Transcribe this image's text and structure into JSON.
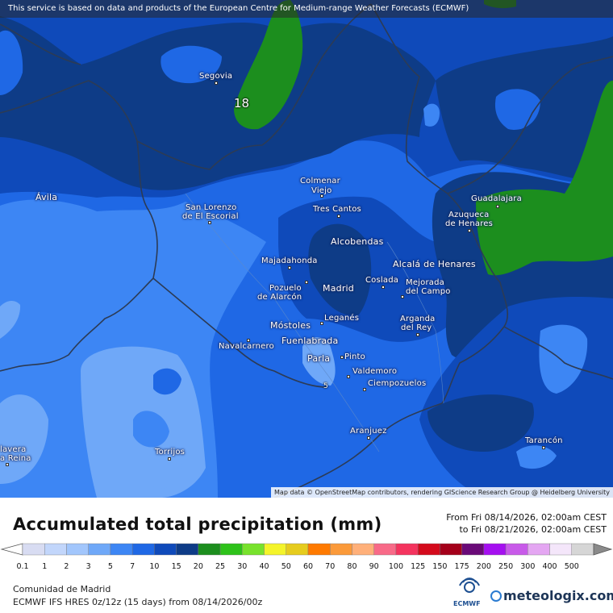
{
  "notice": "This service is based on data and products of the European Centre for Medium-range Weather Forecasts (ECMWF)",
  "attribution": "Map data © OpenStreetMap contributors, rendering GIScience Research Group @ Heidelberg University",
  "title": "Accumulated total precipitation (mm)",
  "period_from": "From Fri 08/14/2026, 02:00am CEST",
  "period_to": "to Fri 08/21/2026, 02:00am CEST",
  "region": "Comunidad de Madrid",
  "model_info": "ECMWF IFS HRES 0z/12z (15 days) from  08/14/2026/00z",
  "brand": "meteologix.com",
  "ecmwf_logo_text": "ECMWF",
  "contour_labels": {
    "c18": "18",
    "c5": "5"
  },
  "cities": {
    "segovia": "Segovia",
    "avila": "Ávila",
    "colmenar1": "Colmenar",
    "colmenar2": "Viejo",
    "sanlorenzo1": "San Lorenzo",
    "sanlorenzo2": "de El Escorial",
    "trescantos": "Tres Cantos",
    "guadalajara": "Guadalajara",
    "azuqueca1": "Azuqueca",
    "azuqueca2": "de Henares",
    "alcobendas": "Alcobendas",
    "majadahonda": "Majadahonda",
    "alcala": "Alcalá de Henares",
    "pozuelo1": "Pozuelo",
    "pozuelo2": "de Alarcón",
    "madrid": "Madrid",
    "coslada": "Coslada",
    "mejorada1": "Mejorada",
    "mejorada2": "del Campo",
    "leganes": "Leganés",
    "mostoles": "Móstoles",
    "arganda1": "Arganda",
    "arganda2": "del Rey",
    "fuenlabrada": "Fuenlabrada",
    "navalcarnero": "Navalcarnero",
    "parla": "Parla",
    "pinto": "Pinto",
    "valdemoro": "Valdemoro",
    "ciempozuelos": "Ciempozuelos",
    "aranjuez": "Aranjuez",
    "tarancon": "Tarancón",
    "torrijos": "Torrijos",
    "talavera1": "lavera",
    "talavera2": "a Reina"
  },
  "legend": {
    "values": [
      "0.1",
      "1",
      "2",
      "3",
      "5",
      "7",
      "10",
      "15",
      "20",
      "25",
      "30",
      "40",
      "50",
      "60",
      "70",
      "80",
      "90",
      "100",
      "125",
      "150",
      "175",
      "200",
      "250",
      "300",
      "400",
      "500"
    ],
    "colors": [
      "#d8dcf2",
      "#c2d6fb",
      "#a2c6fc",
      "#6fa8f8",
      "#3d86f4",
      "#1f68e5",
      "#0f4aba",
      "#0e3c87",
      "#1c8e1e",
      "#2ec21a",
      "#78e22c",
      "#f4f42a",
      "#e6cc1e",
      "#ff7a00",
      "#fb9a3a",
      "#ffb07a",
      "#f86a88",
      "#f4345e",
      "#d40a1c",
      "#a4001a",
      "#6a0a78",
      "#a50ff0",
      "#c85ae9",
      "#e4a6f2",
      "#f4e6fa",
      "#d6d6d6"
    ]
  }
}
